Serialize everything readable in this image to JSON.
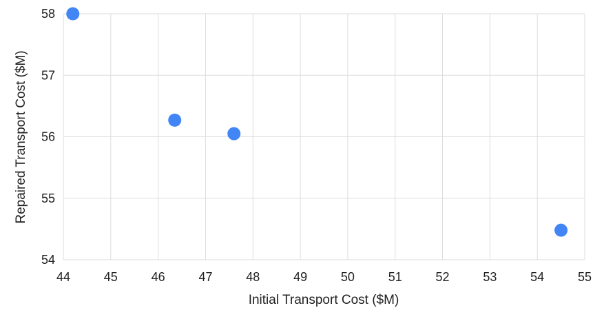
{
  "chart_data": {
    "type": "scatter",
    "title": "",
    "xlabel": "Initial Transport Cost ($M)",
    "ylabel": "Repaired Transport Cost ($M)",
    "xlim": [
      44,
      55
    ],
    "ylim": [
      54,
      58
    ],
    "x_ticks": [
      "44",
      "45",
      "46",
      "47",
      "48",
      "49",
      "50",
      "51",
      "52",
      "53",
      "54",
      "55"
    ],
    "y_ticks": [
      "54",
      "55",
      "56",
      "57",
      "58"
    ],
    "grid": true,
    "legend": "none",
    "series": [
      {
        "color": "#4285f4",
        "points": [
          {
            "x": 44.2,
            "y": 58.0
          },
          {
            "x": 46.35,
            "y": 56.27
          },
          {
            "x": 47.6,
            "y": 56.05
          },
          {
            "x": 54.5,
            "y": 54.48
          }
        ]
      }
    ]
  }
}
